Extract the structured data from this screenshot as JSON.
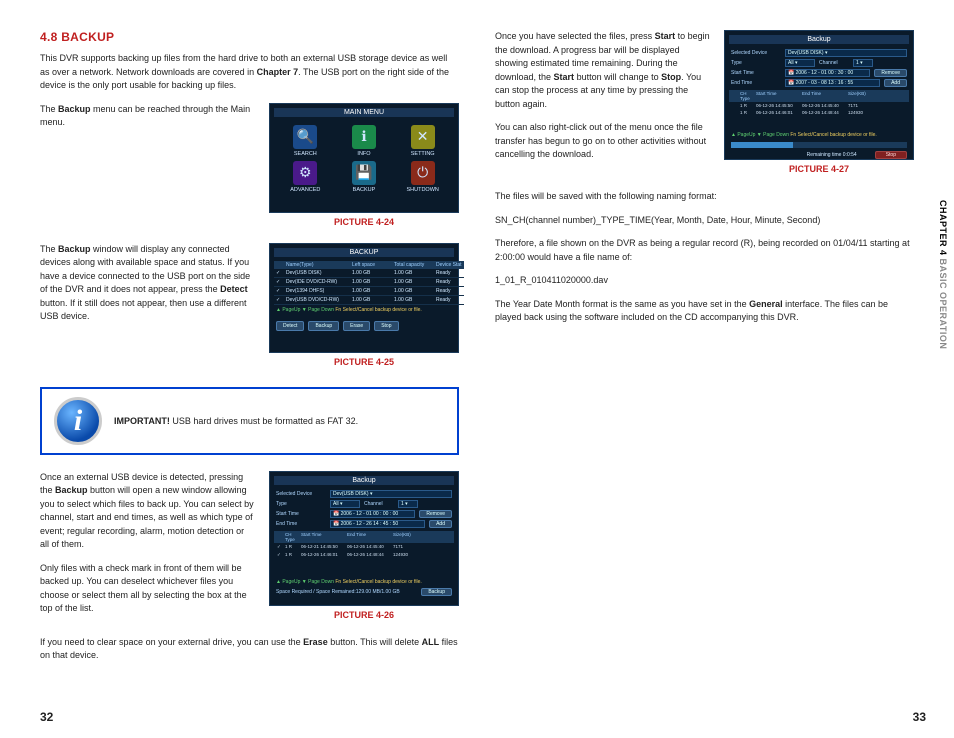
{
  "left": {
    "title": "4.8 BACKUP",
    "p1": "This DVR supports backing up files from the hard drive to both an external USB storage device as well as over a network. Network downloads are covered in ",
    "p1b": "Chapter 7",
    "p1c": ". The USB port on the right side of the device is the only port usable for backing up files.",
    "p2a": "The ",
    "p2b": "Backup",
    "p2c": " menu can be reached through the Main menu.",
    "cap24": "PICTURE 4-24",
    "p3a": "The ",
    "p3b": "Backup",
    "p3c": " window will display any connected devices along with available space and status. If you have a device connected to the USB port on the side of the DVR and it does not appear, press the ",
    "p3d": "Detect",
    "p3e": " button. If it still does not appear, then use a different USB device.",
    "cap25": "PICTURE 4-25",
    "imp_label": "IMPORTANT!",
    "imp_text": " USB hard drives must be formatted as FAT 32.",
    "p4a": "Once an external USB device is detected, pressing the ",
    "p4b": "Backup",
    "p4c": " button will open a new window allowing you to select which files to back up. You can select by channel, start and end times, as well as which type of event; regular recording, alarm, motion detection or all of them.",
    "p5": "Only files with a check mark in front of them will be backed up. You can deselect whichever files you choose or select them all by selecting the box at the top of the list.",
    "cap26": "PICTURE 4-26",
    "p6a": "If you need to clear space on your external drive, you can use the ",
    "p6b": "Erase",
    "p6c": " button. This will delete ",
    "p6d": "ALL",
    "p6e": " files on that device."
  },
  "right": {
    "p1a": "Once you have selected the files, press ",
    "p1b": "Start",
    "p1c": " to begin the download. A progress bar will be displayed showing estimated time remaining. During the download, the ",
    "p1d": "Start",
    "p1e": " button will change to ",
    "p1f": "Stop",
    "p1g": ". You can stop the process at any time by pressing the button again.",
    "p2": "You can also right-click out of the menu once the file transfer has begun to go on to other activities without cancelling the download.",
    "cap27": "PICTURE 4-27",
    "p3": "The files will be saved with the following naming format:",
    "p4": "SN_CH(channel number)_TYPE_TIME(Year, Month, Date, Hour, Minute, Second)",
    "p5": "Therefore, a file shown on the DVR as being a regular record (R), being recorded on 01/04/11 starting at 2:00:00 would have a file name of:",
    "p6": "1_01_R_010411020000.dav",
    "p7a": " The Year Date Month format is the same as you have set in the ",
    "p7b": "General",
    "p7c": " interface. The files can be played back using the software included on the CD accompanying this DVR."
  },
  "mainmenu": {
    "title": "MAIN MENU",
    "icons": [
      {
        "label": "SEARCH",
        "glyph": "🔍",
        "bg": "#1a4a8a"
      },
      {
        "label": "INFO",
        "glyph": "ℹ",
        "bg": "#1a8a4a"
      },
      {
        "label": "SETTING",
        "glyph": "✕",
        "bg": "#8a8a1a"
      },
      {
        "label": "ADVANCED",
        "glyph": "⚙",
        "bg": "#4a1a8a"
      },
      {
        "label": "BACKUP",
        "glyph": "💾",
        "bg": "#1a6a8a"
      },
      {
        "label": "SHUTDOWN",
        "glyph": "⏻",
        "bg": "#8a2a1a"
      }
    ]
  },
  "devlist": {
    "title": "BACKUP",
    "cols": [
      "",
      "Name(Type)",
      "Left space",
      "Total capacity",
      "Device Stat"
    ],
    "rows": [
      [
        "✓",
        "Dev(USB DISK)",
        "1.00 GB",
        "1.00 GB",
        "Ready"
      ],
      [
        "✓",
        "Dev(IDE DVD/CD-RW)",
        "1.00 GB",
        "1.00 GB",
        "Ready"
      ],
      [
        "✓",
        "Dev(1394 DHFS)",
        "1.00 GB",
        "1.00 GB",
        "Ready"
      ],
      [
        "✓",
        "Dev(USB DVD/CD-RW)",
        "1.00 GB",
        "1.00 GB",
        "Ready"
      ]
    ],
    "hint_pg": "▲ PageUp  ▼ Page Down",
    "hint_sel": "Fn Select/Cancel backup device or file.",
    "btns": [
      "Detect",
      "Backup",
      "Erase",
      "Stop"
    ]
  },
  "bk1": {
    "title": "Backup",
    "seldev_lbl": "Selected Device",
    "seldev_val": "Dev(USB DISK)",
    "type_lbl": "Type",
    "type_val": "All",
    "chan_lbl": "Channel",
    "chan_val": "1",
    "start_lbl": "Start Time",
    "start_val": "2006 - 12 - 01  00 : 00 : 00",
    "remove": "Remove",
    "end_lbl": "End Time",
    "end_val": "2006 - 12 - 26  14 : 45 : 50",
    "add": "Add",
    "hdr": [
      "",
      "CH Type",
      "Start Time",
      "End Time",
      "Size(KB)"
    ],
    "rows": [
      [
        "✓",
        "1 R",
        "06-12-21 14:45:50",
        "06-12-26 14:45:40",
        "7171"
      ],
      [
        "✓",
        "1 R",
        "06-12-26 14:46:01",
        "06-12-26 14:48:44",
        "124930"
      ]
    ],
    "hint_pg": "▲ PageUp  ▼ Page Down",
    "hint_sel": "Fn Select/Cancel backup device or file.",
    "footer": "Space Required / Space Remained:129.00 MB/1.00 GB",
    "backup": "Backup"
  },
  "bk2": {
    "title": "Backup",
    "seldev_lbl": "Selected Device",
    "seldev_val": "Dev(USB DISK)",
    "type_lbl": "Type",
    "type_val": "All",
    "chan_lbl": "Channel",
    "chan_val": "1",
    "start_lbl": "Start Time",
    "start_val": "2006 - 12 - 01  00 : 30 : 00",
    "remove": "Remove",
    "end_lbl": "End Time",
    "end_val": "2007 - 03 - 08  13 : 16 : 55",
    "add": "Add",
    "hdr": [
      "",
      "CH Type",
      "Start Time",
      "End Time",
      "Size(KB)"
    ],
    "rows": [
      [
        "",
        "1 R",
        "06-12-26 14:45:50",
        "06-12-26 14:45:40",
        "7171"
      ],
      [
        "",
        "1 R",
        "06-12-26 14:46:01",
        "06-12-26 14:48:44",
        "124930"
      ]
    ],
    "hint_pg": "▲ PageUp  ▼ Page Down",
    "hint_sel": "Fn Select/Cancel backup device or file.",
    "remain": "Remaining time 0:0:54",
    "stop": "Stop"
  },
  "sidebar": {
    "a": "CHAPTER 4",
    "b": " BASIC OPERATION"
  },
  "pg_left": "32",
  "pg_right": "33"
}
